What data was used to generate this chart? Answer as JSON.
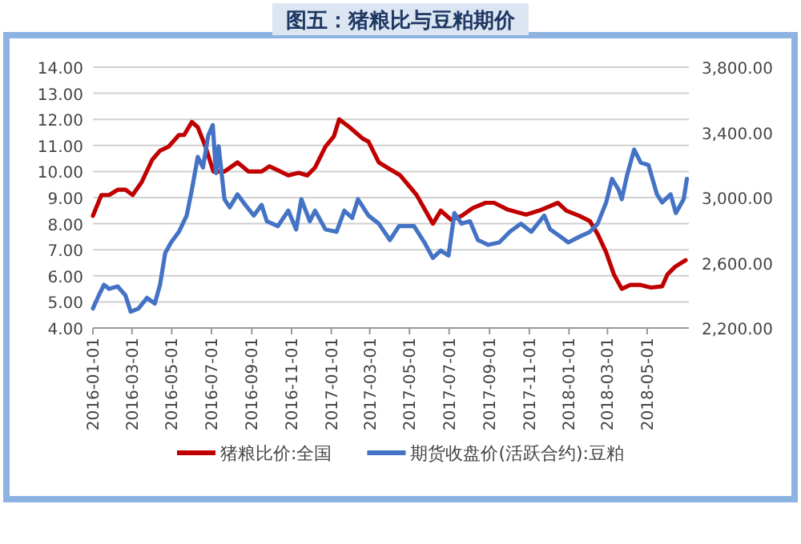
{
  "chart_data": {
    "type": "line",
    "title": "图五：猪粮比与豆粕期价",
    "legend": "bottom",
    "grid": "y",
    "marker": "none",
    "line_style": "solid",
    "xlim": [
      "2016-01-01",
      "2018-07-04"
    ],
    "xticks": [
      "2016-01-01",
      "2016-03-01",
      "2016-05-01",
      "2016-07-01",
      "2016-09-01",
      "2016-11-01",
      "2017-01-01",
      "2017-03-01",
      "2017-05-01",
      "2017-07-01",
      "2017-09-01",
      "2017-11-01",
      "2018-01-01",
      "2018-03-01",
      "2018-05-01"
    ],
    "ylim": [
      4,
      14
    ],
    "yticks": [
      {
        "value": 4,
        "label": "4.00"
      },
      {
        "value": 5,
        "label": "5.00"
      },
      {
        "value": 6,
        "label": "6.00"
      },
      {
        "value": 7,
        "label": "7.00"
      },
      {
        "value": 8,
        "label": "8.00"
      },
      {
        "value": 9,
        "label": "9.00"
      },
      {
        "value": 10,
        "label": "10.00"
      },
      {
        "value": 11,
        "label": "11.00"
      },
      {
        "value": 12,
        "label": "12.00"
      },
      {
        "value": 13,
        "label": "13.00"
      },
      {
        "value": 14,
        "label": "14.00"
      }
    ],
    "y2lim": [
      2200,
      3800
    ],
    "y2ticks": [
      {
        "value": 2200,
        "label": "2,200.00"
      },
      {
        "value": 2600,
        "label": "2,600.00"
      },
      {
        "value": 3000,
        "label": "3,000.00"
      },
      {
        "value": 3400,
        "label": "3,400.00"
      },
      {
        "value": 3800,
        "label": "3,800.00"
      }
    ],
    "series": [
      {
        "name": "猪粮比价:全国",
        "color": "#c00000",
        "x": [
          "2016-01-01",
          "2016-01-14",
          "2016-01-26",
          "2016-02-08",
          "2016-02-20",
          "2016-03-02",
          "2016-03-16",
          "2016-04-01",
          "2016-04-13",
          "2016-04-26",
          "2016-05-12",
          "2016-05-20",
          "2016-06-01",
          "2016-06-10",
          "2016-06-22",
          "2016-07-04",
          "2016-07-21",
          "2016-08-10",
          "2016-08-27",
          "2016-09-16",
          "2016-09-28",
          "2016-10-15",
          "2016-10-27",
          "2016-11-12",
          "2016-11-25",
          "2016-12-07",
          "2016-12-23",
          "2017-01-05",
          "2017-01-13",
          "2017-01-29",
          "2017-02-19",
          "2017-02-27",
          "2017-03-15",
          "2017-03-28",
          "2017-04-17",
          "2017-05-12",
          "2017-06-06",
          "2017-06-18",
          "2017-07-04",
          "2017-07-20",
          "2017-08-06",
          "2017-08-26",
          "2017-09-08",
          "2017-09-28",
          "2017-10-27",
          "2017-11-16",
          "2017-12-15",
          "2017-12-28",
          "2018-01-17",
          "2018-02-02",
          "2018-02-14",
          "2018-02-27",
          "2018-03-11",
          "2018-03-23",
          "2018-04-05",
          "2018-04-21",
          "2018-05-07",
          "2018-05-24",
          "2018-06-01",
          "2018-06-13",
          "2018-06-29"
        ],
        "values": [
          8.3,
          9.1,
          9.1,
          9.3,
          9.3,
          9.1,
          9.6,
          10.45,
          10.8,
          10.95,
          11.4,
          11.4,
          11.9,
          11.7,
          10.95,
          10.0,
          10.0,
          10.35,
          10.0,
          10.0,
          10.2,
          10.0,
          9.85,
          9.95,
          9.85,
          10.15,
          10.95,
          11.35,
          12.0,
          11.7,
          11.25,
          11.15,
          10.35,
          10.15,
          9.85,
          9.1,
          8.0,
          8.5,
          8.15,
          8.3,
          8.6,
          8.8,
          8.8,
          8.55,
          8.35,
          8.5,
          8.8,
          8.5,
          8.3,
          8.1,
          7.6,
          6.9,
          6.05,
          5.5,
          5.65,
          5.65,
          5.55,
          5.6,
          6.05,
          6.35,
          6.6
        ]
      },
      {
        "name": "期货收盘价(活跃合约):豆粕",
        "color": "#4472c4",
        "axis": "y2",
        "x": [
          "2016-01-01",
          "2016-01-10",
          "2016-01-18",
          "2016-01-26",
          "2016-02-08",
          "2016-02-20",
          "2016-02-28",
          "2016-03-11",
          "2016-03-24",
          "2016-04-05",
          "2016-04-13",
          "2016-04-21",
          "2016-04-30",
          "2016-05-12",
          "2016-05-24",
          "2016-06-01",
          "2016-06-10",
          "2016-06-18",
          "2016-06-26",
          "2016-07-03",
          "2016-07-08",
          "2016-07-12",
          "2016-07-21",
          "2016-07-29",
          "2016-08-10",
          "2016-08-22",
          "2016-09-04",
          "2016-09-16",
          "2016-09-24",
          "2016-10-11",
          "2016-10-27",
          "2016-11-08",
          "2016-11-16",
          "2016-11-29",
          "2016-12-07",
          "2016-12-23",
          "2017-01-09",
          "2017-01-21",
          "2017-02-02",
          "2017-02-11",
          "2017-02-27",
          "2017-03-15",
          "2017-04-01",
          "2017-04-15",
          "2017-05-08",
          "2017-05-24",
          "2017-06-06",
          "2017-06-18",
          "2017-06-30",
          "2017-07-09",
          "2017-07-20",
          "2017-08-02",
          "2017-08-14",
          "2017-08-30",
          "2017-09-16",
          "2017-10-02",
          "2017-10-19",
          "2017-11-04",
          "2017-11-24",
          "2017-12-03",
          "2017-12-19",
          "2017-12-31",
          "2018-01-17",
          "2018-02-02",
          "2018-02-14",
          "2018-02-27",
          "2018-03-08",
          "2018-03-18",
          "2018-03-23",
          "2018-03-31",
          "2018-04-11",
          "2018-04-21",
          "2018-05-03",
          "2018-05-16",
          "2018-05-24",
          "2018-06-06",
          "2018-06-14",
          "2018-06-26",
          "2018-07-01"
        ],
        "values": [
          2320,
          2400,
          2465,
          2440,
          2455,
          2400,
          2300,
          2320,
          2385,
          2350,
          2465,
          2660,
          2725,
          2790,
          2890,
          3050,
          3250,
          3185,
          3380,
          3445,
          3150,
          3315,
          2990,
          2940,
          3020,
          2955,
          2890,
          2955,
          2855,
          2825,
          2920,
          2805,
          2990,
          2855,
          2920,
          2805,
          2790,
          2920,
          2875,
          2990,
          2890,
          2840,
          2740,
          2825,
          2825,
          2725,
          2630,
          2675,
          2645,
          2905,
          2840,
          2855,
          2740,
          2710,
          2725,
          2790,
          2840,
          2790,
          2890,
          2805,
          2760,
          2725,
          2760,
          2790,
          2840,
          2970,
          3115,
          3050,
          2990,
          3135,
          3295,
          3215,
          3200,
          3020,
          2970,
          3020,
          2905,
          2990,
          3115
        ]
      }
    ]
  }
}
